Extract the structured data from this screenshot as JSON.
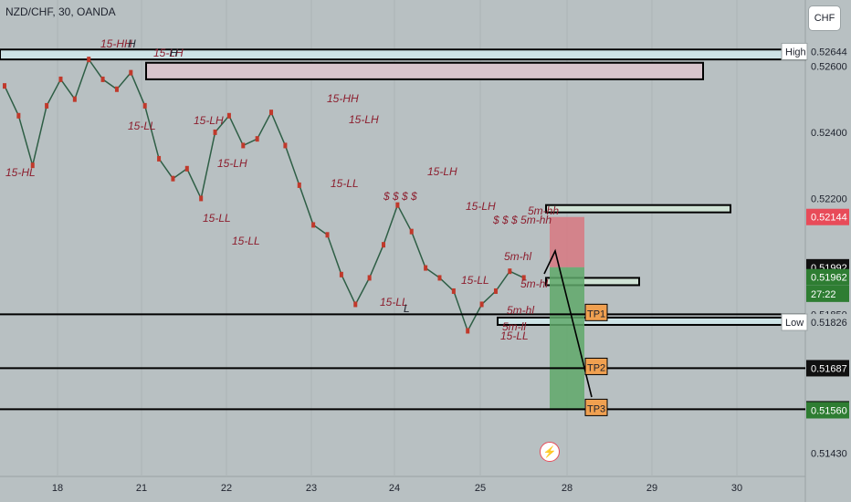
{
  "header": {
    "symbol": "NZD/CHF, 30, OANDA",
    "currency": "CHF"
  },
  "chart_data": {
    "type": "line",
    "title": "NZD/CHF, 30, OANDA",
    "ylim": [
      0.5136,
      0.5275
    ],
    "x_ticks": [
      "18",
      "21",
      "22",
      "23",
      "24",
      "25",
      "28",
      "29",
      "30"
    ],
    "y_ticks": [
      0.52644,
      0.526,
      0.524,
      0.522,
      0.52144,
      0.51992,
      0.51962,
      0.5185,
      0.51826,
      0.51687,
      0.51563,
      0.5156,
      0.5143
    ],
    "price_labels": [
      {
        "text": "0.52644",
        "value": 0.52644,
        "style": "plain"
      },
      {
        "text": "0.52600",
        "value": 0.526,
        "style": "plain"
      },
      {
        "text": "0.52400",
        "value": 0.524,
        "style": "plain"
      },
      {
        "text": "0.52200",
        "value": 0.522,
        "style": "plain"
      },
      {
        "text": "0.52144",
        "value": 0.52144,
        "style": "red"
      },
      {
        "text": "0.51992",
        "value": 0.51992,
        "style": "dark"
      },
      {
        "text": "0.51962",
        "value": 0.51962,
        "style": "green"
      },
      {
        "text": "27:22",
        "value": 0.51912,
        "style": "green"
      },
      {
        "text": "0.51850",
        "value": 0.5185,
        "style": "plain"
      },
      {
        "text": "0.51826",
        "value": 0.51826,
        "style": "plain"
      },
      {
        "text": "0.51687",
        "value": 0.51687,
        "style": "dark"
      },
      {
        "text": "0.51563",
        "value": 0.51563,
        "style": "dark"
      },
      {
        "text": "0.51560",
        "value": 0.5156,
        "style": "green"
      },
      {
        "text": "0.51430",
        "value": 0.5143,
        "style": "plain"
      }
    ],
    "series": [
      {
        "values": [
          [
            0,
            0.5254
          ],
          [
            0.5,
            0.5245
          ],
          [
            1,
            0.523
          ],
          [
            1.5,
            0.5248
          ],
          [
            2,
            0.5256
          ],
          [
            2.5,
            0.525
          ],
          [
            3,
            0.5262
          ],
          [
            3.5,
            0.5256
          ],
          [
            4,
            0.5253
          ],
          [
            4.5,
            0.5258
          ],
          [
            5,
            0.5248
          ],
          [
            5.5,
            0.5232
          ],
          [
            6,
            0.5226
          ],
          [
            6.5,
            0.5229
          ],
          [
            7,
            0.522
          ],
          [
            7.5,
            0.524
          ],
          [
            8,
            0.5245
          ],
          [
            8.5,
            0.5236
          ],
          [
            9,
            0.5238
          ],
          [
            9.5,
            0.5246
          ],
          [
            10,
            0.5236
          ],
          [
            10.5,
            0.5224
          ],
          [
            11,
            0.5212
          ],
          [
            11.5,
            0.5209
          ],
          [
            12,
            0.5197
          ],
          [
            12.5,
            0.5188
          ],
          [
            13,
            0.5196
          ],
          [
            13.5,
            0.5206
          ],
          [
            14,
            0.5218
          ],
          [
            14.5,
            0.521
          ],
          [
            15,
            0.5199
          ],
          [
            15.5,
            0.5196
          ],
          [
            16,
            0.5192
          ],
          [
            16.5,
            0.518
          ],
          [
            17,
            0.5188
          ],
          [
            17.5,
            0.5192
          ],
          [
            18,
            0.5198
          ],
          [
            18.5,
            0.5196
          ]
        ]
      }
    ],
    "levels": [
      {
        "label": "TP1",
        "price": 0.5185
      },
      {
        "label": "TP2",
        "price": 0.51687
      },
      {
        "label": "TP3",
        "price": 0.51563
      }
    ],
    "range_tags": [
      {
        "text": "High",
        "price": 0.52644
      },
      {
        "text": "Low",
        "price": 0.51826
      }
    ],
    "zones": [
      {
        "from": 0.5262,
        "to": 0.5265,
        "color": "#cde3e6"
      },
      {
        "from": 0.5256,
        "to": 0.5261,
        "color": "#d8c4cc"
      },
      {
        "from": 0.5216,
        "to": 0.5218,
        "color": "#cfe2d4"
      },
      {
        "from": 0.5195,
        "to": 0.5196,
        "color": "#cfe2d4"
      },
      {
        "from": 0.5182,
        "to": 0.5184,
        "color": "#cde3e6"
      }
    ],
    "position": {
      "entry": 0.51992,
      "stop": 0.52144,
      "target": 0.5156
    },
    "annotations": [
      "15-HH",
      "H",
      "15-LH",
      "H",
      "15-LL",
      "15-HL",
      "15-HH",
      "15-LH",
      "15-LH",
      "15-LL",
      "15-LH",
      "15-LL",
      "15-LL",
      "15-LL",
      "L",
      "15-LH",
      "$ $ $ $",
      "15-LH",
      "$ $ $ 5m-hh",
      "15-LL",
      "5m-hl",
      "5m-hh",
      "5m-hl",
      "5m-hl",
      "15-LL",
      "5m-ll"
    ]
  }
}
